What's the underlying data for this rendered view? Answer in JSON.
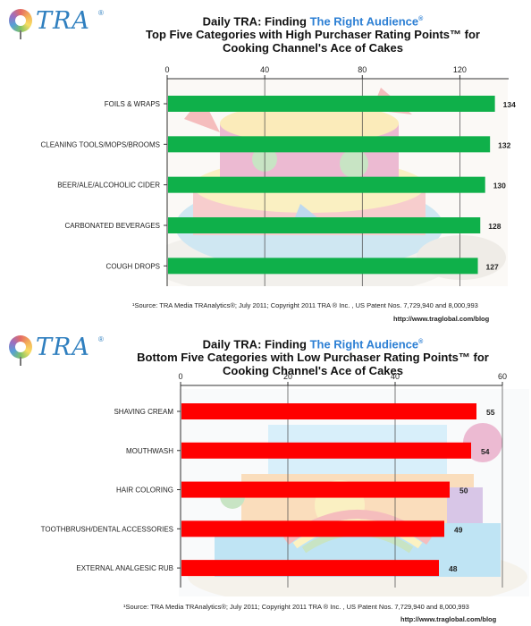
{
  "logo": {
    "text": "TRA",
    "mark": "®"
  },
  "chart_data": [
    {
      "type": "bar",
      "orientation": "horizontal",
      "title_prefix": "Daily TRA: Finding ",
      "title_accent": "The Right Audience",
      "subtitle": "Top Five Categories with High Purchaser Rating Points™ for",
      "subtitle2": "Cooking Channel's Ace of Cakes",
      "categories": [
        "FOILS & WRAPS",
        "CLEANING TOOLS/MOPS/BROOMS",
        "BEER/ALE/ALCOHOLIC  CIDER",
        "CARBONATED  BEVERAGES",
        "COUGH DROPS"
      ],
      "values": [
        134,
        132,
        130,
        128,
        127
      ],
      "xlim": [
        0,
        140
      ],
      "xticks": [
        0,
        40,
        80,
        120
      ],
      "bar_color": "#0fb04a",
      "grid": true,
      "source": "¹Source:  TRA Media TRAnalytics®; July 2011; Copyright 2011 TRA ® Inc. , US Patent Nos. 7,729,940 and 8,000,993",
      "url": "http://www.traglobal.com/blog"
    },
    {
      "type": "bar",
      "orientation": "horizontal",
      "title_prefix": "Daily TRA: Finding ",
      "title_accent": "The Right Audience",
      "subtitle": "Bottom Five Categories with Low Purchaser Rating Points™ for",
      "subtitle2": "Cooking Channel's Ace of Cakes",
      "categories": [
        "SHAVING CREAM",
        "MOUTHWASH",
        "HAIR COLORING",
        "TOOTHBRUSH/DENTAL  ACCESSORIES",
        "EXTERNAL  ANALGESIC RUB"
      ],
      "values": [
        55,
        54,
        50,
        49,
        48
      ],
      "xlim": [
        0,
        60
      ],
      "xticks": [
        0,
        20,
        40,
        60
      ],
      "bar_color": "#ff0000",
      "grid": true,
      "source": "¹Source:  TRA Media TRAnalytics®; July 2011; Copyright 2011 TRA ® Inc. , US Patent Nos. 7,729,940 and 8,000,993",
      "url": "http://www.traglobal.com/blog"
    }
  ]
}
